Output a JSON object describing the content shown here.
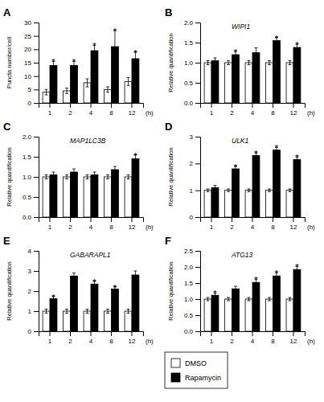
{
  "chart_data": [
    {
      "type": "bar",
      "title": "A",
      "ylabel": "Puncta number/cell",
      "xlabel": "(h)",
      "categories": [
        "1",
        "2",
        "4",
        "8",
        "12"
      ],
      "series": [
        {
          "name": "DMSO",
          "color": "white",
          "values": [
            4,
            4.5,
            7.5,
            5,
            8
          ],
          "errors": [
            1.0,
            1.0,
            1.5,
            1.0,
            1.5
          ]
        },
        {
          "name": "Rapamycin",
          "color": "black",
          "values": [
            14,
            14,
            19.5,
            21,
            16.5
          ],
          "errors": [
            1.5,
            1.5,
            2.0,
            6.0,
            2.5
          ]
        }
      ],
      "ylim": [
        0,
        30
      ],
      "yticks": [
        0,
        5,
        10,
        15,
        20,
        25,
        30
      ],
      "annotations": [
        {
          "text": "*",
          "x": "1",
          "series": "Rapamycin"
        },
        {
          "text": "*",
          "x": "2",
          "series": "Rapamycin"
        },
        {
          "text": "*",
          "x": "4",
          "series": "Rapamycin"
        },
        {
          "text": "*",
          "x": "8",
          "series": "Rapamycin"
        },
        {
          "text": "*",
          "x": "12",
          "series": "Rapamycin"
        }
      ],
      "legend": "bottom"
    },
    {
      "type": "bar",
      "title": "B",
      "subtitle": "WIPI1",
      "ylabel": "Relative quantification",
      "xlabel": "(h)",
      "categories": [
        "1",
        "2",
        "4",
        "8",
        "12"
      ],
      "series": [
        {
          "name": "DMSO",
          "color": "white",
          "values": [
            1.0,
            1.0,
            1.0,
            1.0,
            1.0
          ],
          "errors": [
            0.05,
            0.05,
            0.05,
            0.05,
            0.05
          ]
        },
        {
          "name": "Rapamycin",
          "color": "black",
          "values": [
            1.05,
            1.2,
            1.25,
            1.55,
            1.38
          ],
          "errors": [
            0.07,
            0.08,
            0.12,
            0.08,
            0.08
          ]
        }
      ],
      "ylim": [
        0,
        2
      ],
      "yticks": [
        {
          "value": 0,
          "label": "0.0"
        },
        0.5,
        {
          "value": 1.0,
          "label": "1.0"
        },
        1.5,
        {
          "value": 2.0,
          "label": "2.0"
        }
      ],
      "annotations": [
        {
          "text": "*",
          "x": "2",
          "series": "Rapamycin"
        },
        {
          "text": "*",
          "x": "8",
          "series": "Rapamycin"
        },
        {
          "text": "*",
          "x": "12",
          "series": "Rapamycin"
        }
      ]
    },
    {
      "type": "bar",
      "title": "C",
      "subtitle": "MAP1LC3B",
      "ylabel": "Relative quantification",
      "xlabel": "(h)",
      "categories": [
        "1",
        "2",
        "4",
        "8",
        "12"
      ],
      "series": [
        {
          "name": "DMSO",
          "color": "white",
          "values": [
            1.0,
            1.0,
            1.0,
            1.0,
            1.0
          ],
          "errors": [
            0.05,
            0.05,
            0.05,
            0.05,
            0.05
          ]
        },
        {
          "name": "Rapamycin",
          "color": "black",
          "values": [
            1.05,
            1.12,
            1.05,
            1.18,
            1.45
          ],
          "errors": [
            0.07,
            0.08,
            0.07,
            0.08,
            0.1
          ]
        }
      ],
      "ylim": [
        0,
        2
      ],
      "yticks": [
        {
          "value": 0,
          "label": "0.0"
        },
        0.5,
        {
          "value": 1.0,
          "label": "1.0"
        },
        1.5,
        {
          "value": 2.0,
          "label": "2.0"
        }
      ],
      "annotations": [
        {
          "text": "*",
          "x": "12",
          "series": "Rapamycin"
        }
      ]
    },
    {
      "type": "bar",
      "title": "D",
      "subtitle": "ULK1",
      "ylabel": "Relative quantification",
      "xlabel": "(h)",
      "categories": [
        "1",
        "2",
        "4",
        "8",
        "12"
      ],
      "series": [
        {
          "name": "DMSO",
          "color": "white",
          "values": [
            1.0,
            1.0,
            1.0,
            1.0,
            1.0
          ],
          "errors": [
            0.05,
            0.05,
            0.05,
            0.05,
            0.05
          ]
        },
        {
          "name": "Rapamycin",
          "color": "black",
          "values": [
            1.1,
            1.8,
            2.3,
            2.5,
            2.15
          ],
          "errors": [
            0.08,
            0.1,
            0.1,
            0.1,
            0.1
          ]
        }
      ],
      "ylim": [
        0,
        3
      ],
      "yticks": [
        0,
        1,
        2,
        3
      ],
      "annotations": [
        {
          "text": "*",
          "x": "2",
          "series": "Rapamycin"
        },
        {
          "text": "*",
          "x": "4",
          "series": "Rapamycin"
        },
        {
          "text": "*",
          "x": "8",
          "series": "Rapamycin"
        },
        {
          "text": "*",
          "x": "12",
          "series": "Rapamycin"
        }
      ]
    },
    {
      "type": "bar",
      "title": "E",
      "subtitle": "GABARAPL1",
      "ylabel": "Relative quantification",
      "xlabel": "(h)",
      "categories": [
        "1",
        "2",
        "4",
        "8",
        "12"
      ],
      "series": [
        {
          "name": "DMSO",
          "color": "white",
          "values": [
            1.0,
            1.0,
            1.0,
            1.0,
            1.0
          ],
          "errors": [
            0.1,
            0.1,
            0.1,
            0.1,
            0.1
          ]
        },
        {
          "name": "Rapamycin",
          "color": "black",
          "values": [
            1.62,
            2.75,
            2.35,
            2.1,
            2.8
          ],
          "errors": [
            0.12,
            0.15,
            0.15,
            0.12,
            0.2
          ]
        }
      ],
      "ylim": [
        0,
        4
      ],
      "yticks": [
        0,
        1,
        2,
        3,
        4
      ],
      "annotations": [
        {
          "text": "*",
          "x": "1",
          "series": "Rapamycin"
        },
        {
          "text": "*",
          "x": "4",
          "series": "Rapamycin"
        },
        {
          "text": "*",
          "x": "8",
          "series": "Rapamycin"
        }
      ]
    },
    {
      "type": "bar",
      "title": "F",
      "subtitle": "ATG13",
      "ylabel": "Relative quantification",
      "xlabel": "(h)",
      "categories": [
        "1",
        "2",
        "4",
        "8",
        "12"
      ],
      "series": [
        {
          "name": "DMSO",
          "color": "white",
          "values": [
            1.0,
            1.0,
            1.0,
            1.0,
            1.0
          ],
          "errors": [
            0.05,
            0.05,
            0.05,
            0.05,
            0.05
          ]
        },
        {
          "name": "Rapamycin",
          "color": "black",
          "values": [
            1.12,
            1.32,
            1.52,
            1.72,
            1.92
          ],
          "errors": [
            0.07,
            0.08,
            0.1,
            0.1,
            0.1
          ]
        }
      ],
      "ylim": [
        0,
        2.5
      ],
      "yticks": [
        {
          "value": 0,
          "label": "0.0"
        },
        0.5,
        {
          "value": 1.0,
          "label": "1.0"
        },
        1.5,
        {
          "value": 2.0,
          "label": "2.0"
        },
        2.5
      ],
      "annotations": [
        {
          "text": "*",
          "x": "1",
          "series": "Rapamycin"
        },
        {
          "text": "*",
          "x": "4",
          "series": "Rapamycin"
        },
        {
          "text": "*",
          "x": "8",
          "series": "Rapamycin"
        },
        {
          "text": "*",
          "x": "12",
          "series": "Rapamycin"
        }
      ]
    }
  ]
}
